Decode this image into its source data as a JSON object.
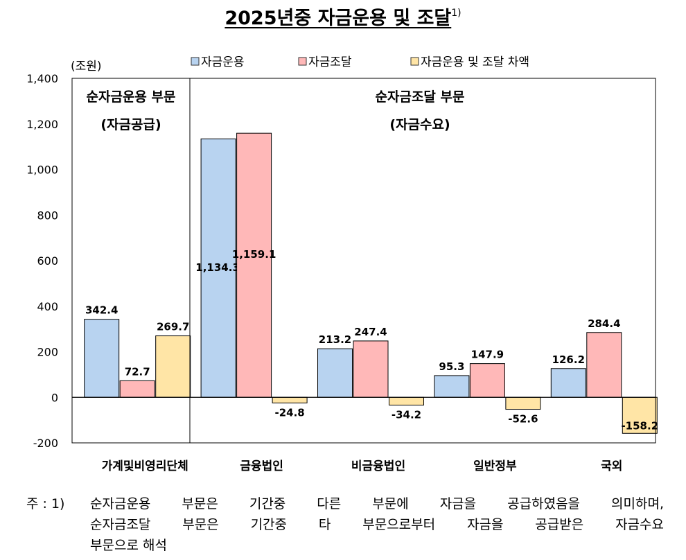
{
  "title": "2025년중 자금운용 및 조달",
  "title_sup": "1)",
  "chart_data": {
    "type": "bar",
    "unit_label": "(조원)",
    "categories": [
      "가계및비영리단체",
      "금융법인",
      "비금융법인",
      "일반정부",
      "국외"
    ],
    "series": [
      {
        "name": "자금운용",
        "color": "#b8d3f0",
        "values": [
          342.4,
          1134.3,
          213.2,
          95.3,
          126.2
        ],
        "labels": [
          "342.4",
          "1,134.3",
          "213.2",
          "95.3",
          "126.2"
        ]
      },
      {
        "name": "자금조달",
        "color": "#ffb8b8",
        "values": [
          72.7,
          1159.1,
          247.4,
          147.9,
          284.4
        ],
        "labels": [
          "72.7",
          "1,159.1",
          "247.4",
          "147.9",
          "284.4"
        ]
      },
      {
        "name": "자금운용 및 조달 차액",
        "color": "#ffe5a6",
        "values": [
          269.7,
          -24.8,
          -34.2,
          -52.6,
          -158.2
        ],
        "labels": [
          "269.7",
          "-24.8",
          "-34.2",
          "-52.6",
          "-158.2"
        ]
      }
    ],
    "ylim": [
      -200,
      1400
    ],
    "yticks": [
      -200,
      0,
      200,
      400,
      600,
      800,
      1000,
      1200,
      1400
    ],
    "ytick_labels": [
      "-200",
      "0",
      "200",
      "400",
      "600",
      "800",
      "1,000",
      "1,200",
      "1,400"
    ],
    "legend_position": "top",
    "annotations": [
      {
        "lines": [
          "순자금운용 부문",
          "(자금공급)"
        ]
      },
      {
        "lines": [
          "순자금조달 부문",
          "(자금수요)"
        ]
      }
    ]
  },
  "note": {
    "marker": "주 : 1)",
    "lines": [
      "순자금운용 부문은 기간중 다른 부문에 자금을 공급하였음을 의미하며,",
      "순자금조달 부문은 기간중 타 부문으로부터 자금을 공급받은 자금수요",
      "부문으로 해석"
    ]
  }
}
